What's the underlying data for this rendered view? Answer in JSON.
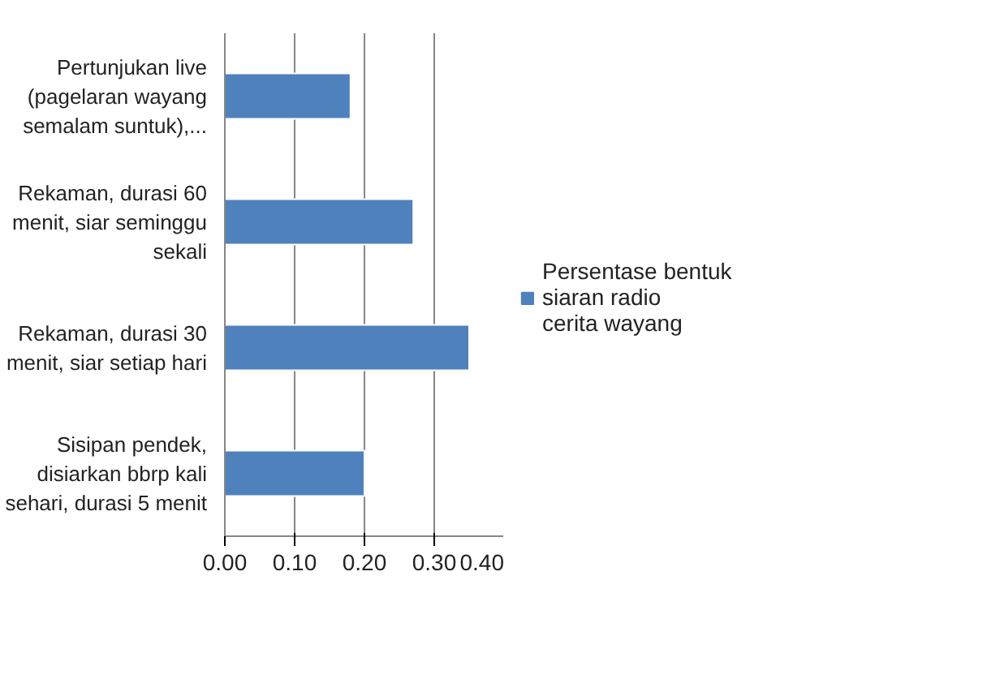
{
  "chart_data": {
    "type": "bar",
    "orientation": "horizontal",
    "categories": [
      "Pertunjukan live (pagelaran wayang semalam suntuk),...",
      "Rekaman, durasi 60 menit, siar seminggu sekali",
      "Rekaman, durasi 30 menit, siar setiap hari",
      "Sisipan pendek, disiarkan bbrp kali sehari, durasi 5 menit"
    ],
    "series": [
      {
        "name": "Persentase bentuk siaran radio cerita wayang",
        "color": "#4f81bd",
        "values": [
          0.18,
          0.27,
          0.35,
          0.2
        ]
      }
    ],
    "xlim": [
      0,
      0.4
    ],
    "xticks": [
      {
        "value": 0,
        "label": "0.00"
      },
      {
        "value": 0.1,
        "label": "0.10"
      },
      {
        "value": 0.2,
        "label": "0.20"
      },
      {
        "value": 0.3,
        "label": "0.30"
      },
      {
        "value": 0.4,
        "label": "0.40"
      }
    ],
    "grid": "x",
    "legend": "right"
  }
}
